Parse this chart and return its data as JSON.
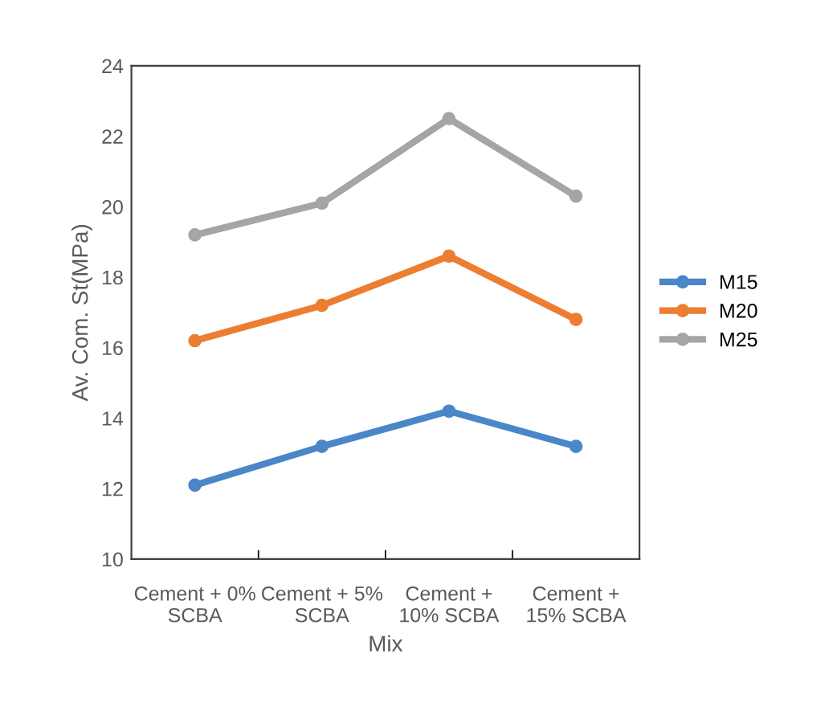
{
  "chart_data": {
    "type": "line",
    "xlabel": "Mix",
    "ylabel": "Av. Com. St(MPa)",
    "categories": [
      "Cement + 0%\nSCBA",
      "Cement + 5%\nSCBA",
      "Cement +\n10% SCBA",
      "Cement +\n15% SCBA"
    ],
    "series": [
      {
        "name": "M15",
        "color": "#4a86c8",
        "values": [
          12.1,
          13.2,
          14.2,
          13.2
        ]
      },
      {
        "name": "M20",
        "color": "#ed7d31",
        "values": [
          16.2,
          17.2,
          18.6,
          16.8
        ]
      },
      {
        "name": "M25",
        "color": "#a5a5a5",
        "values": [
          19.2,
          20.1,
          22.5,
          20.3
        ]
      }
    ],
    "ylim": [
      10,
      24
    ],
    "yticks": [
      10,
      12,
      14,
      16,
      18,
      20,
      22,
      24
    ],
    "grid": false,
    "legend": "right",
    "marker": "circle",
    "line_style": "solid"
  }
}
